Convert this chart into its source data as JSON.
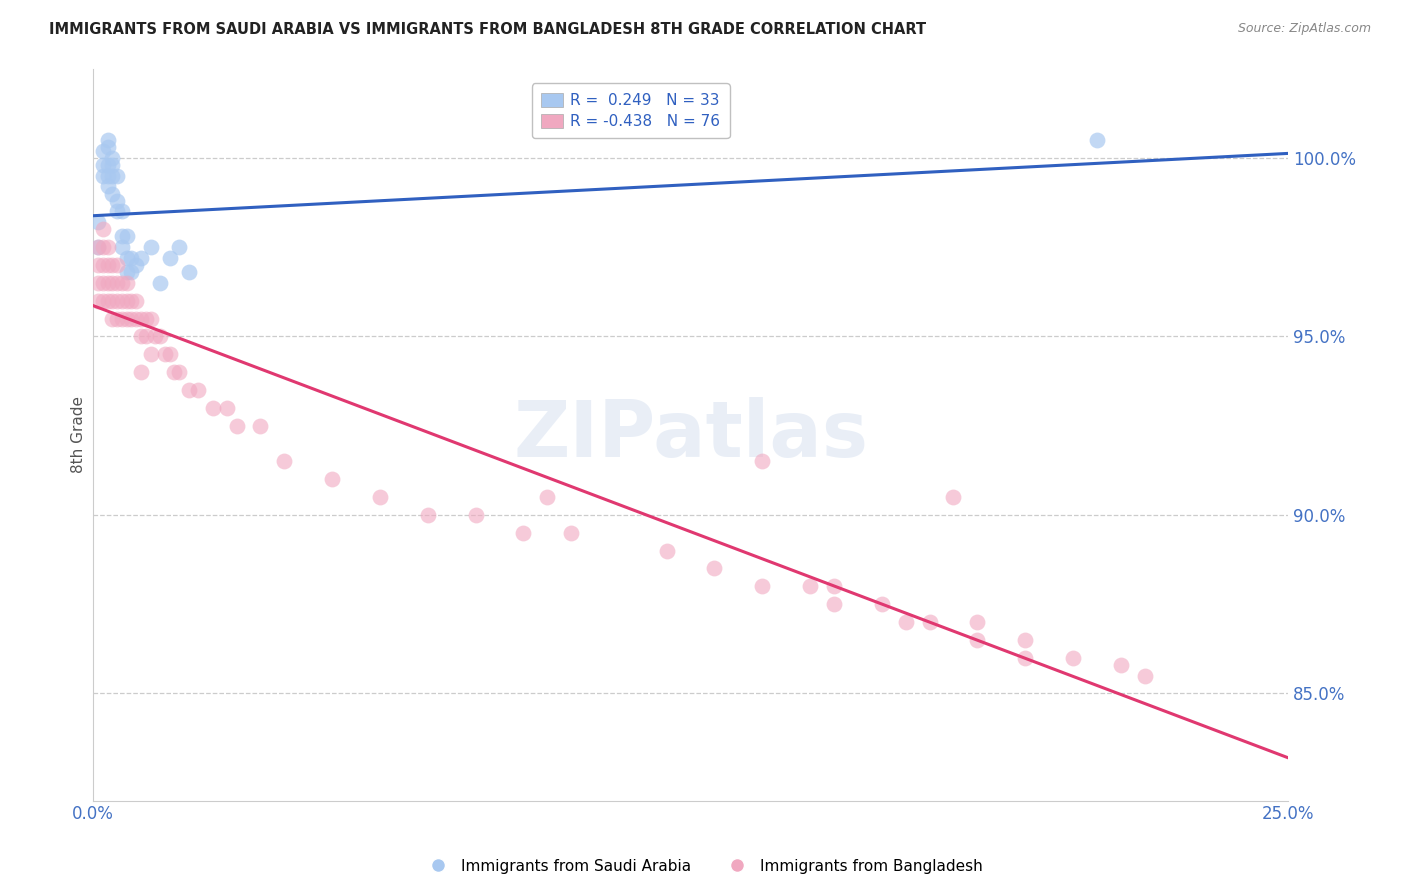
{
  "title": "IMMIGRANTS FROM SAUDI ARABIA VS IMMIGRANTS FROM BANGLADESH 8TH GRADE CORRELATION CHART",
  "source": "Source: ZipAtlas.com",
  "ylabel": "8th Grade",
  "yticks": [
    100.0,
    95.0,
    90.0,
    85.0
  ],
  "xlim": [
    0.0,
    0.25
  ],
  "ylim": [
    82.0,
    102.5
  ],
  "legend_entry1": "R =  0.249   N = 33",
  "legend_entry2": "R = -0.438   N = 76",
  "legend_label1": "Immigrants from Saudi Arabia",
  "legend_label2": "Immigrants from Bangladesh",
  "color_saudi": "#a8c8f0",
  "color_bangladesh": "#f0a8c0",
  "color_line_saudi": "#3060c0",
  "color_line_bangladesh": "#e03870",
  "background_color": "#ffffff",
  "watermark_text": "ZIPatlas",
  "saudi_x": [
    0.001,
    0.001,
    0.002,
    0.002,
    0.002,
    0.003,
    0.003,
    0.003,
    0.003,
    0.003,
    0.004,
    0.004,
    0.004,
    0.004,
    0.005,
    0.005,
    0.005,
    0.006,
    0.006,
    0.006,
    0.007,
    0.007,
    0.007,
    0.008,
    0.008,
    0.009,
    0.01,
    0.012,
    0.014,
    0.016,
    0.018,
    0.02,
    0.21
  ],
  "saudi_y": [
    98.2,
    97.5,
    100.2,
    99.5,
    99.8,
    100.5,
    100.3,
    99.8,
    99.5,
    99.2,
    100.0,
    99.8,
    99.5,
    99.0,
    99.5,
    98.8,
    98.5,
    98.5,
    97.8,
    97.5,
    97.8,
    97.2,
    96.8,
    97.2,
    96.8,
    97.0,
    97.2,
    97.5,
    96.5,
    97.2,
    97.5,
    96.8,
    100.5
  ],
  "bangladesh_x": [
    0.001,
    0.001,
    0.001,
    0.001,
    0.002,
    0.002,
    0.002,
    0.002,
    0.002,
    0.003,
    0.003,
    0.003,
    0.003,
    0.004,
    0.004,
    0.004,
    0.004,
    0.005,
    0.005,
    0.005,
    0.005,
    0.006,
    0.006,
    0.006,
    0.007,
    0.007,
    0.007,
    0.008,
    0.008,
    0.009,
    0.009,
    0.01,
    0.01,
    0.011,
    0.011,
    0.012,
    0.013,
    0.014,
    0.015,
    0.016,
    0.017,
    0.018,
    0.02,
    0.022,
    0.025,
    0.028,
    0.03,
    0.035,
    0.04,
    0.05,
    0.06,
    0.07,
    0.08,
    0.09,
    0.1,
    0.12,
    0.13,
    0.15,
    0.155,
    0.165,
    0.175,
    0.185,
    0.195,
    0.14,
    0.155,
    0.17,
    0.185,
    0.195,
    0.205,
    0.215,
    0.22,
    0.01,
    0.012,
    0.095,
    0.14,
    0.18
  ],
  "bangladesh_y": [
    97.5,
    97.0,
    96.5,
    96.0,
    98.0,
    97.5,
    97.0,
    96.5,
    96.0,
    97.5,
    97.0,
    96.5,
    96.0,
    97.0,
    96.5,
    96.0,
    95.5,
    97.0,
    96.5,
    96.0,
    95.5,
    96.5,
    96.0,
    95.5,
    96.5,
    96.0,
    95.5,
    96.0,
    95.5,
    96.0,
    95.5,
    95.5,
    95.0,
    95.5,
    95.0,
    95.5,
    95.0,
    95.0,
    94.5,
    94.5,
    94.0,
    94.0,
    93.5,
    93.5,
    93.0,
    93.0,
    92.5,
    92.5,
    91.5,
    91.0,
    90.5,
    90.0,
    90.0,
    89.5,
    89.5,
    89.0,
    88.5,
    88.0,
    88.0,
    87.5,
    87.0,
    87.0,
    86.5,
    88.0,
    87.5,
    87.0,
    86.5,
    86.0,
    86.0,
    85.8,
    85.5,
    94.0,
    94.5,
    90.5,
    91.5,
    90.5
  ]
}
